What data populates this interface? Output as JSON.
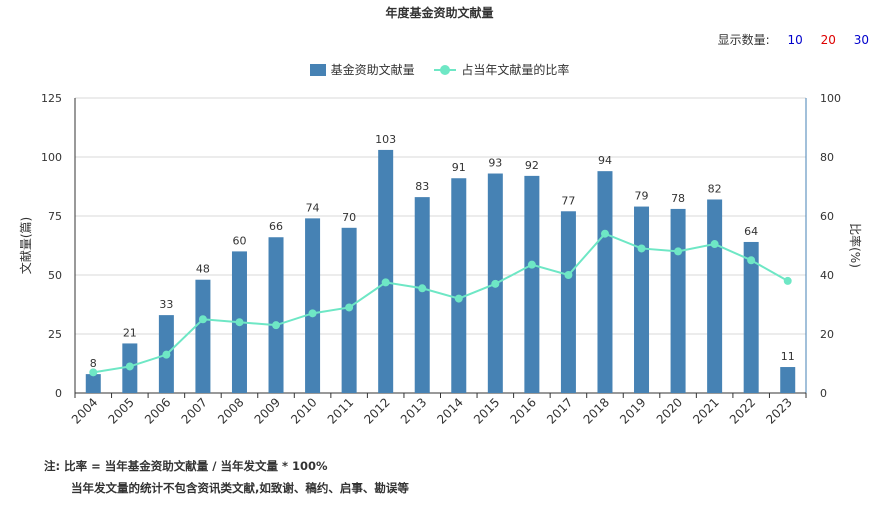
{
  "title": "年度基金资助文献量",
  "display_count": {
    "label": "显示数量:",
    "options": [
      "10",
      "20",
      "30"
    ],
    "option_colors": [
      "#0000cc",
      "#dd0000",
      "#0000cc"
    ]
  },
  "legend": {
    "bar_label": "基金资助文献量",
    "line_label": "占当年文献量的比率"
  },
  "notes": {
    "line1": "注: 比率 = 当年基金资助文献量 / 当年发文量 * 100%",
    "line2": "当年发文量的统计不包含资讯类文献,如致谢、稿约、启事、勘误等"
  },
  "colors": {
    "bar": "#4682b4",
    "line": "#6ee7c5",
    "axis": "#333333"
  },
  "chart_data": {
    "type": "bar",
    "title": "年度基金资助文献量",
    "categories": [
      "2004",
      "2005",
      "2006",
      "2007",
      "2008",
      "2009",
      "2010",
      "2011",
      "2012",
      "2013",
      "2014",
      "2015",
      "2016",
      "2017",
      "2018",
      "2019",
      "2020",
      "2021",
      "2022",
      "2023"
    ],
    "series": [
      {
        "name": "基金资助文献量",
        "type": "bar",
        "axis": "left",
        "values": [
          8,
          21,
          33,
          48,
          60,
          66,
          74,
          70,
          103,
          83,
          91,
          93,
          92,
          77,
          94,
          79,
          78,
          82,
          64,
          11
        ]
      },
      {
        "name": "占当年文献量的比率",
        "type": "line",
        "axis": "right",
        "values": [
          7,
          9,
          13,
          25,
          24,
          23,
          27,
          29,
          37.5,
          35.5,
          32,
          37,
          43.5,
          40,
          54,
          49,
          48,
          50.5,
          45,
          38
        ]
      }
    ],
    "ylabel": "文献量(篇)",
    "y2label": "比率(%)",
    "ylim": [
      0,
      125
    ],
    "y2lim": [
      0,
      100
    ],
    "yticks": [
      "0",
      "25",
      "50",
      "75",
      "100",
      "125"
    ],
    "y2ticks": [
      "0",
      "20",
      "40",
      "60",
      "80",
      "100"
    ],
    "grid": true,
    "legend_position": "top"
  }
}
